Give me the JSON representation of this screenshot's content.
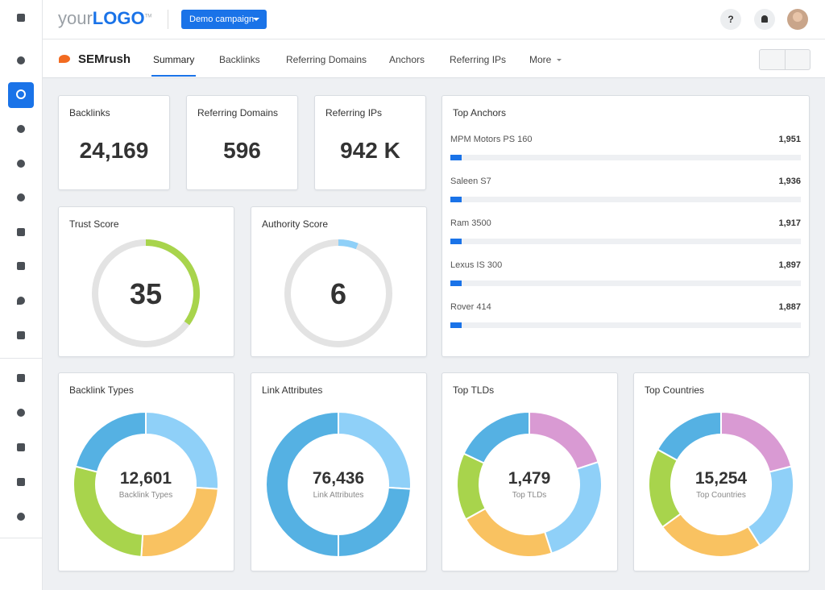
{
  "header": {
    "logo_prefix": "your",
    "logo_main": "LOGO",
    "logo_tm": "TM",
    "campaign": "Demo campaign",
    "help": "?"
  },
  "nav": {
    "brand": "SEMrush",
    "tabs": [
      "Summary",
      "Backlinks",
      "Referring Domains",
      "Anchors",
      "Referring IPs",
      "More"
    ]
  },
  "stats": [
    {
      "label": "Backlinks",
      "value": "24,169"
    },
    {
      "label": "Referring Domains",
      "value": "596"
    },
    {
      "label": "Referring IPs",
      "value": "942 K"
    }
  ],
  "gauge_scale": [
    0,
    100
  ],
  "gauges": [
    {
      "label": "Trust Score",
      "value": 35,
      "color": "#a8d44c"
    },
    {
      "label": "Authority Score",
      "value": 6,
      "color": "#8fd0f8"
    }
  ],
  "top_anchors": {
    "title": "Top Anchors",
    "items": [
      {
        "name": "MPM Motors PS 160",
        "value": "1,951"
      },
      {
        "name": "Saleen S7",
        "value": "1,936"
      },
      {
        "name": "Ram 3500",
        "value": "1,917"
      },
      {
        "name": "Lexus IS 300",
        "value": "1,897"
      },
      {
        "name": "Rover 414",
        "value": "1,887"
      }
    ]
  },
  "donuts": [
    {
      "title": "Backlink Types",
      "total": "12,601",
      "caption": "Backlink Types",
      "segments": [
        {
          "color": "#8fd0f8",
          "value": 26
        },
        {
          "color": "#f9c261",
          "value": 25
        },
        {
          "color": "#a8d44c",
          "value": 28
        },
        {
          "color": "#55b1e3",
          "value": 21
        }
      ]
    },
    {
      "title": "Link Attributes",
      "total": "76,436",
      "caption": "Link Attributes",
      "segments": [
        {
          "color": "#8fd0f8",
          "value": 26
        },
        {
          "color": "#55b1e3",
          "value": 24
        },
        {
          "color": "#55b1e3",
          "value": 50
        }
      ]
    },
    {
      "title": "Top TLDs",
      "total": "1,479",
      "caption": "Top TLDs",
      "segments": [
        {
          "color": "#d99ad3",
          "value": 20
        },
        {
          "color": "#8fd0f8",
          "value": 25
        },
        {
          "color": "#f9c261",
          "value": 22
        },
        {
          "color": "#a8d44c",
          "value": 15
        },
        {
          "color": "#55b1e3",
          "value": 18
        }
      ]
    },
    {
      "title": "Top Countries",
      "total": "15,254",
      "caption": "Top Countries",
      "segments": [
        {
          "color": "#d99ad3",
          "value": 21
        },
        {
          "color": "#8fd0f8",
          "value": 20
        },
        {
          "color": "#f9c261",
          "value": 24
        },
        {
          "color": "#a8d44c",
          "value": 18
        },
        {
          "color": "#55b1e3",
          "value": 17
        }
      ]
    }
  ]
}
